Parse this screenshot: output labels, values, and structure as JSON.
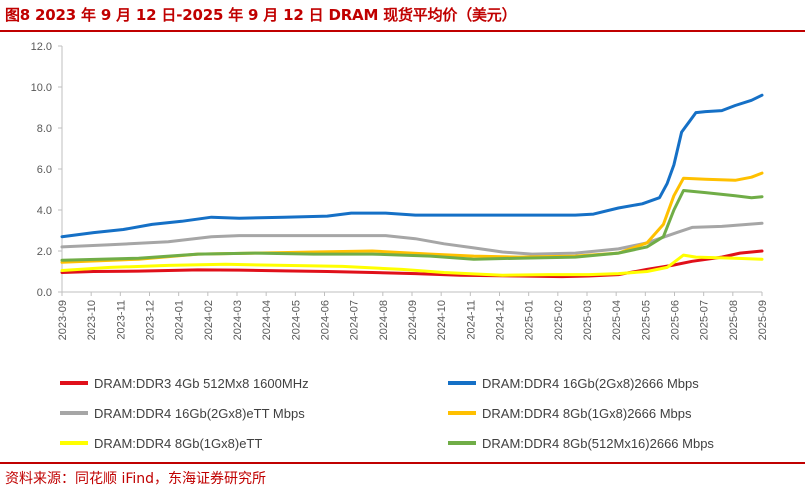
{
  "header": {
    "title": "图8  2023 年 9 月 12 日-2025 年 9 月 12 日 DRAM 现货平均价（美元）"
  },
  "footer": {
    "source": "资料来源：同花顺 iFind，东海证券研究所"
  },
  "chart_data": {
    "type": "line",
    "title": "",
    "xlabel": "",
    "ylabel": "",
    "ylim": [
      0,
      12
    ],
    "yticks": [
      "0.0",
      "2.0",
      "4.0",
      "6.0",
      "8.0",
      "10.0",
      "12.0"
    ],
    "x_ticks": [
      "2023-09",
      "2023-10",
      "2023-11",
      "2023-12",
      "2024-01",
      "2024-02",
      "2024-03",
      "2024-04",
      "2024-05",
      "2024-06",
      "2024-07",
      "2024-08",
      "2024-09",
      "2024-10",
      "2024-11",
      "2024-12",
      "2025-01",
      "2025-02",
      "2025-03",
      "2025-04",
      "2025-05",
      "2025-06",
      "2025-07",
      "2025-08",
      "2025-09"
    ],
    "x_range": [
      "2023-09-12",
      "2025-09-12"
    ],
    "grid": false,
    "legend_position": "bottom",
    "series": [
      {
        "name": "DRAM:DDR3 4Gb 512Mx8 1600MHz",
        "color": "#e0101a",
        "points": [
          [
            "2023-09-12",
            0.95
          ],
          [
            "2023-10-15",
            1.0
          ],
          [
            "2023-12-01",
            1.02
          ],
          [
            "2024-01-01",
            1.05
          ],
          [
            "2024-02-01",
            1.08
          ],
          [
            "2024-03-15",
            1.07
          ],
          [
            "2024-05-01",
            1.03
          ],
          [
            "2024-06-15",
            1.0
          ],
          [
            "2024-08-01",
            0.95
          ],
          [
            "2024-09-15",
            0.9
          ],
          [
            "2024-11-01",
            0.82
          ],
          [
            "2025-01-01",
            0.78
          ],
          [
            "2025-02-15",
            0.75
          ],
          [
            "2025-03-15",
            0.78
          ],
          [
            "2025-04-15",
            0.85
          ],
          [
            "2025-05-15",
            1.1
          ],
          [
            "2025-06-10",
            1.3
          ],
          [
            "2025-07-01",
            1.5
          ],
          [
            "2025-08-01",
            1.7
          ],
          [
            "2025-08-20",
            1.9
          ],
          [
            "2025-09-12",
            2.0
          ]
        ]
      },
      {
        "name": "DRAM:DDR4 16Gb(2Gx8)2666 Mbps",
        "color": "#1570c6",
        "points": [
          [
            "2023-09-12",
            2.7
          ],
          [
            "2023-10-15",
            2.9
          ],
          [
            "2023-11-15",
            3.05
          ],
          [
            "2023-12-15",
            3.3
          ],
          [
            "2024-01-15",
            3.45
          ],
          [
            "2024-02-15",
            3.65
          ],
          [
            "2024-03-15",
            3.6
          ],
          [
            "2024-05-01",
            3.65
          ],
          [
            "2024-06-15",
            3.7
          ],
          [
            "2024-07-10",
            3.85
          ],
          [
            "2024-08-15",
            3.85
          ],
          [
            "2024-09-15",
            3.75
          ],
          [
            "2024-11-01",
            3.75
          ],
          [
            "2025-01-01",
            3.75
          ],
          [
            "2025-03-01",
            3.75
          ],
          [
            "2025-03-20",
            3.8
          ],
          [
            "2025-04-15",
            4.1
          ],
          [
            "2025-05-10",
            4.3
          ],
          [
            "2025-05-28",
            4.6
          ],
          [
            "2025-06-05",
            5.3
          ],
          [
            "2025-06-12",
            6.2
          ],
          [
            "2025-06-20",
            7.8
          ],
          [
            "2025-06-28",
            8.3
          ],
          [
            "2025-07-05",
            8.75
          ],
          [
            "2025-07-15",
            8.8
          ],
          [
            "2025-08-01",
            8.85
          ],
          [
            "2025-08-15",
            9.1
          ],
          [
            "2025-09-01",
            9.35
          ],
          [
            "2025-09-12",
            9.6
          ]
        ]
      },
      {
        "name": "DRAM:DDR4 16Gb(2Gx8)eTT Mbps",
        "color": "#a6a6a6",
        "points": [
          [
            "2023-09-12",
            2.2
          ],
          [
            "2023-11-01",
            2.3
          ],
          [
            "2024-01-01",
            2.45
          ],
          [
            "2024-02-15",
            2.7
          ],
          [
            "2024-03-15",
            2.75
          ],
          [
            "2024-05-01",
            2.75
          ],
          [
            "2024-07-01",
            2.75
          ],
          [
            "2024-08-15",
            2.75
          ],
          [
            "2024-09-15",
            2.6
          ],
          [
            "2024-10-15",
            2.35
          ],
          [
            "2024-11-15",
            2.15
          ],
          [
            "2024-12-15",
            1.95
          ],
          [
            "2025-01-15",
            1.85
          ],
          [
            "2025-03-01",
            1.9
          ],
          [
            "2025-04-15",
            2.1
          ],
          [
            "2025-05-15",
            2.4
          ],
          [
            "2025-06-15",
            2.9
          ],
          [
            "2025-07-01",
            3.15
          ],
          [
            "2025-08-01",
            3.2
          ],
          [
            "2025-09-12",
            3.35
          ]
        ]
      },
      {
        "name": "DRAM:DDR4 8Gb(1Gx8)2666 Mbps",
        "color": "#ffc000",
        "points": [
          [
            "2023-09-12",
            1.45
          ],
          [
            "2023-12-01",
            1.6
          ],
          [
            "2024-02-01",
            1.85
          ],
          [
            "2024-04-01",
            1.9
          ],
          [
            "2024-06-01",
            1.95
          ],
          [
            "2024-08-01",
            2.0
          ],
          [
            "2024-10-01",
            1.85
          ],
          [
            "2024-11-15",
            1.75
          ],
          [
            "2025-01-01",
            1.7
          ],
          [
            "2025-03-01",
            1.75
          ],
          [
            "2025-04-15",
            1.9
          ],
          [
            "2025-05-15",
            2.4
          ],
          [
            "2025-06-01",
            3.3
          ],
          [
            "2025-06-12",
            4.7
          ],
          [
            "2025-06-22",
            5.55
          ],
          [
            "2025-07-15",
            5.5
          ],
          [
            "2025-08-15",
            5.45
          ],
          [
            "2025-09-01",
            5.6
          ],
          [
            "2025-09-12",
            5.8
          ]
        ]
      },
      {
        "name": "DRAM:DDR4 8Gb(1Gx8)eTT",
        "color": "#ffff00",
        "points": [
          [
            "2023-09-12",
            1.05
          ],
          [
            "2023-11-01",
            1.2
          ],
          [
            "2024-01-01",
            1.3
          ],
          [
            "2024-03-01",
            1.35
          ],
          [
            "2024-05-01",
            1.3
          ],
          [
            "2024-07-01",
            1.25
          ],
          [
            "2024-09-01",
            1.1
          ],
          [
            "2024-10-15",
            0.95
          ],
          [
            "2024-12-15",
            0.82
          ],
          [
            "2025-02-01",
            0.85
          ],
          [
            "2025-03-15",
            0.85
          ],
          [
            "2025-04-15",
            0.9
          ],
          [
            "2025-05-15",
            1.0
          ],
          [
            "2025-06-05",
            1.2
          ],
          [
            "2025-06-22",
            1.8
          ],
          [
            "2025-07-05",
            1.7
          ],
          [
            "2025-08-15",
            1.65
          ],
          [
            "2025-09-12",
            1.6
          ]
        ]
      },
      {
        "name": "DRAM:DDR4 8Gb(512Mx16)2666 Mbps",
        "color": "#70ad47",
        "points": [
          [
            "2023-09-12",
            1.55
          ],
          [
            "2023-12-01",
            1.65
          ],
          [
            "2024-02-01",
            1.85
          ],
          [
            "2024-04-01",
            1.9
          ],
          [
            "2024-06-01",
            1.85
          ],
          [
            "2024-08-01",
            1.85
          ],
          [
            "2024-10-01",
            1.75
          ],
          [
            "2024-11-15",
            1.6
          ],
          [
            "2025-01-01",
            1.65
          ],
          [
            "2025-03-01",
            1.7
          ],
          [
            "2025-04-15",
            1.9
          ],
          [
            "2025-05-15",
            2.2
          ],
          [
            "2025-06-01",
            2.7
          ],
          [
            "2025-06-12",
            4.0
          ],
          [
            "2025-06-22",
            4.95
          ],
          [
            "2025-07-15",
            4.85
          ],
          [
            "2025-08-15",
            4.7
          ],
          [
            "2025-09-01",
            4.6
          ],
          [
            "2025-09-12",
            4.65
          ]
        ]
      }
    ]
  }
}
